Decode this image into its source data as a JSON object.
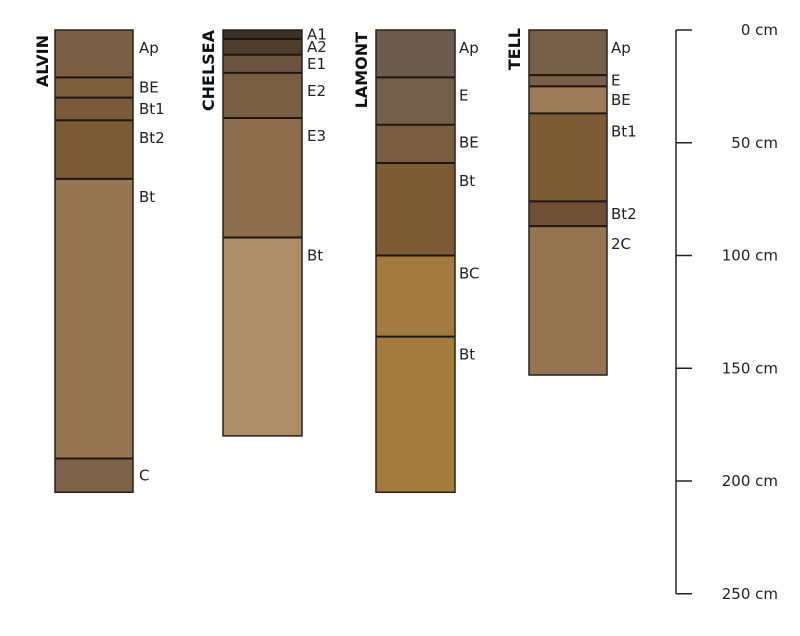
{
  "diagram": {
    "profiles": [
      {
        "name": "ALVIN",
        "depth_cm": 205,
        "horizons": [
          {
            "label": "Ap",
            "top_cm": 0,
            "bottom_cm": 21,
            "color": "#7a5f44"
          },
          {
            "label": "BE",
            "top_cm": 21,
            "bottom_cm": 30,
            "color": "#7c5d3e"
          },
          {
            "label": "Bt1",
            "top_cm": 30,
            "bottom_cm": 40,
            "color": "#7a5a38"
          },
          {
            "label": "Bt2",
            "top_cm": 40,
            "bottom_cm": 66,
            "color": "#7b5a36"
          },
          {
            "label": "Bt",
            "top_cm": 66,
            "bottom_cm": 190,
            "color": "#967553"
          },
          {
            "label": "C",
            "top_cm": 190,
            "bottom_cm": 205,
            "color": "#7c6249"
          }
        ]
      },
      {
        "name": "CHELSEA",
        "depth_cm": 180,
        "horizons": [
          {
            "label": "A1",
            "top_cm": 0,
            "bottom_cm": 4,
            "color": "#3c3126"
          },
          {
            "label": "A2",
            "top_cm": 4,
            "bottom_cm": 11,
            "color": "#4e3d2c"
          },
          {
            "label": "E1",
            "top_cm": 11,
            "bottom_cm": 19,
            "color": "#6a5440"
          },
          {
            "label": "E2",
            "top_cm": 19,
            "bottom_cm": 39,
            "color": "#7a5e42"
          },
          {
            "label": "E3",
            "top_cm": 39,
            "bottom_cm": 92,
            "color": "#8c6c4a"
          },
          {
            "label": "Bt",
            "top_cm": 92,
            "bottom_cm": 180,
            "color": "#ac8d68"
          }
        ]
      },
      {
        "name": "LAMONT",
        "depth_cm": 205,
        "horizons": [
          {
            "label": "Ap",
            "top_cm": 0,
            "bottom_cm": 21,
            "color": "#6b5c4d"
          },
          {
            "label": "E",
            "top_cm": 21,
            "bottom_cm": 42,
            "color": "#73604b"
          },
          {
            "label": "BE",
            "top_cm": 42,
            "bottom_cm": 59,
            "color": "#7a5d40"
          },
          {
            "label": "Bt",
            "top_cm": 59,
            "bottom_cm": 100,
            "color": "#7c5a34"
          },
          {
            "label": "BC",
            "top_cm": 100,
            "bottom_cm": 136,
            "color": "#a37a40"
          },
          {
            "label": "Bt",
            "top_cm": 136,
            "bottom_cm": 205,
            "color": "#a57a3d"
          }
        ]
      },
      {
        "name": "TELL",
        "depth_cm": 153,
        "horizons": [
          {
            "label": "Ap",
            "top_cm": 0,
            "bottom_cm": 20,
            "color": "#766048"
          },
          {
            "label": "E",
            "top_cm": 20,
            "bottom_cm": 25,
            "color": "#7a6048"
          },
          {
            "label": "BE",
            "top_cm": 25,
            "bottom_cm": 37,
            "color": "#9c7c58"
          },
          {
            "label": "Bt1",
            "top_cm": 37,
            "bottom_cm": 76,
            "color": "#7d5b35"
          },
          {
            "label": "Bt2",
            "top_cm": 76,
            "bottom_cm": 87,
            "color": "#6f5035"
          },
          {
            "label": "2C",
            "top_cm": 87,
            "bottom_cm": 153,
            "color": "#957452"
          }
        ]
      }
    ],
    "scale": {
      "ticks": [
        {
          "value_cm": 0,
          "label": "0 cm"
        },
        {
          "value_cm": 50,
          "label": "50 cm"
        },
        {
          "value_cm": 100,
          "label": "100 cm"
        },
        {
          "value_cm": 150,
          "label": "150 cm"
        },
        {
          "value_cm": 200,
          "label": "200 cm"
        },
        {
          "value_cm": 250,
          "label": "250 cm"
        }
      ]
    }
  }
}
